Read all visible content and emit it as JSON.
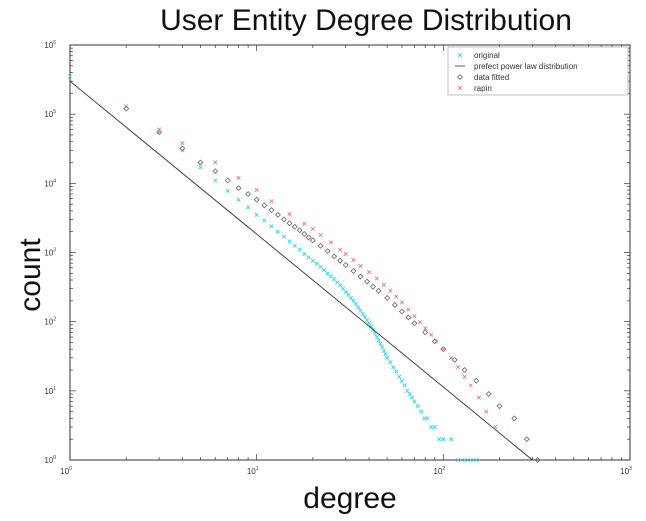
{
  "chart_data": {
    "type": "scatter",
    "title": "User Entity Degree Distribution",
    "xlabel": "degree",
    "ylabel": "count",
    "x_scale": "log",
    "y_scale": "log",
    "xlim": [
      1,
      1000
    ],
    "ylim": [
      1,
      1000000
    ],
    "x_ticks": [
      {
        "base": "10",
        "exp": "0",
        "value": 1
      },
      {
        "base": "10",
        "exp": "1",
        "value": 10
      },
      {
        "base": "10",
        "exp": "2",
        "value": 100
      },
      {
        "base": "10",
        "exp": "3",
        "value": 1000
      }
    ],
    "y_ticks": [
      {
        "base": "10",
        "exp": "0",
        "value": 1
      },
      {
        "base": "10",
        "exp": "1",
        "value": 10
      },
      {
        "base": "10",
        "exp": "2",
        "value": 100
      },
      {
        "base": "10",
        "exp": "3",
        "value": 1000
      },
      {
        "base": "10",
        "exp": "4",
        "value": 10000
      },
      {
        "base": "10",
        "exp": "5",
        "value": 100000
      },
      {
        "base": "10",
        "exp": "6",
        "value": 1000000
      }
    ],
    "grid": false,
    "legend_position": "top-right",
    "series": [
      {
        "name": "original",
        "marker": "x",
        "color": "#33d6e6",
        "points": [
          [
            1,
            350000
          ],
          [
            2,
            130000
          ],
          [
            3,
            55000
          ],
          [
            4,
            30000
          ],
          [
            5,
            17000
          ],
          [
            6,
            11000
          ],
          [
            7,
            7800
          ],
          [
            8,
            5800
          ],
          [
            9,
            4500
          ],
          [
            10,
            3500
          ],
          [
            11,
            2900
          ],
          [
            12,
            2400
          ],
          [
            13,
            2000
          ],
          [
            14,
            1700
          ],
          [
            15,
            1450
          ],
          [
            16,
            1250
          ],
          [
            17,
            1100
          ],
          [
            18,
            950
          ],
          [
            19,
            850
          ],
          [
            20,
            760
          ],
          [
            21,
            690
          ],
          [
            22,
            620
          ],
          [
            23,
            560
          ],
          [
            24,
            500
          ],
          [
            25,
            450
          ],
          [
            26,
            410
          ],
          [
            27,
            370
          ],
          [
            28,
            335
          ],
          [
            29,
            300
          ],
          [
            30,
            270
          ],
          [
            31,
            245
          ],
          [
            32,
            220
          ],
          [
            33,
            200
          ],
          [
            34,
            180
          ],
          [
            35,
            160
          ],
          [
            36,
            145
          ],
          [
            37,
            130
          ],
          [
            38,
            118
          ],
          [
            39,
            105
          ],
          [
            40,
            95
          ],
          [
            41,
            85
          ],
          [
            42,
            76
          ],
          [
            43,
            68
          ],
          [
            44,
            60
          ],
          [
            45,
            54
          ],
          [
            46,
            48
          ],
          [
            47,
            43
          ],
          [
            48,
            38
          ],
          [
            49,
            34
          ],
          [
            50,
            30
          ],
          [
            52,
            26
          ],
          [
            54,
            22
          ],
          [
            56,
            19
          ],
          [
            58,
            16
          ],
          [
            60,
            14
          ],
          [
            62,
            12
          ],
          [
            64,
            10
          ],
          [
            66,
            9
          ],
          [
            68,
            8
          ],
          [
            70,
            7
          ],
          [
            73,
            6
          ],
          [
            76,
            5
          ],
          [
            79,
            4
          ],
          [
            82,
            4
          ],
          [
            86,
            3
          ],
          [
            90,
            3
          ],
          [
            95,
            2
          ],
          [
            100,
            2
          ],
          [
            110,
            2
          ],
          [
            120,
            1
          ],
          [
            130,
            1
          ],
          [
            140,
            1
          ],
          [
            150,
            1
          ]
        ]
      },
      {
        "name": "prefect power law distribution",
        "marker": "line",
        "color": "#333333",
        "line": [
          [
            1,
            300000
          ],
          [
            300,
            1
          ]
        ]
      },
      {
        "name": "data fitted",
        "marker": "diamond",
        "color": "#666666",
        "points": [
          [
            2,
            120000
          ],
          [
            3,
            55000
          ],
          [
            4,
            32000
          ],
          [
            5,
            20000
          ],
          [
            6,
            15000
          ],
          [
            7,
            11000
          ],
          [
            8,
            8500
          ],
          [
            9,
            7000
          ],
          [
            10,
            5800
          ],
          [
            11,
            4800
          ],
          [
            12,
            4100
          ],
          [
            13,
            3500
          ],
          [
            14,
            3000
          ],
          [
            15,
            2650
          ],
          [
            16,
            2350
          ],
          [
            17,
            2100
          ],
          [
            18,
            1850
          ],
          [
            19,
            1650
          ],
          [
            20,
            1500
          ],
          [
            22,
            1250
          ],
          [
            24,
            1050
          ],
          [
            26,
            880
          ],
          [
            28,
            760
          ],
          [
            30,
            660
          ],
          [
            33,
            540
          ],
          [
            36,
            450
          ],
          [
            39,
            380
          ],
          [
            42,
            320
          ],
          [
            45,
            280
          ],
          [
            50,
            220
          ],
          [
            55,
            175
          ],
          [
            60,
            140
          ],
          [
            65,
            115
          ],
          [
            70,
            95
          ],
          [
            80,
            70
          ],
          [
            90,
            52
          ],
          [
            100,
            40
          ],
          [
            115,
            28
          ],
          [
            130,
            20
          ],
          [
            150,
            14
          ],
          [
            175,
            9
          ],
          [
            200,
            6
          ],
          [
            240,
            4
          ],
          [
            280,
            2
          ],
          [
            320,
            1
          ]
        ]
      },
      {
        "name": "rapin",
        "marker": "x",
        "color": "#ee7777",
        "points": [
          [
            3,
            60000
          ],
          [
            4,
            38000
          ],
          [
            6,
            20000
          ],
          [
            8,
            12000
          ],
          [
            10,
            8000
          ],
          [
            12,
            5500
          ],
          [
            15,
            3600
          ],
          [
            18,
            2600
          ],
          [
            20,
            2200
          ],
          [
            22,
            1800
          ],
          [
            25,
            1400
          ],
          [
            28,
            1100
          ],
          [
            30,
            950
          ],
          [
            33,
            780
          ],
          [
            36,
            640
          ],
          [
            40,
            520
          ],
          [
            44,
            420
          ],
          [
            48,
            340
          ],
          [
            52,
            280
          ],
          [
            56,
            230
          ],
          [
            60,
            190
          ],
          [
            65,
            150
          ],
          [
            70,
            120
          ],
          [
            75,
            98
          ],
          [
            80,
            80
          ],
          [
            86,
            65
          ],
          [
            92,
            52
          ],
          [
            100,
            40
          ],
          [
            110,
            30
          ],
          [
            120,
            22
          ],
          [
            130,
            16
          ],
          [
            140,
            12
          ],
          [
            155,
            8
          ],
          [
            170,
            5
          ],
          [
            190,
            3
          ]
        ]
      }
    ]
  }
}
